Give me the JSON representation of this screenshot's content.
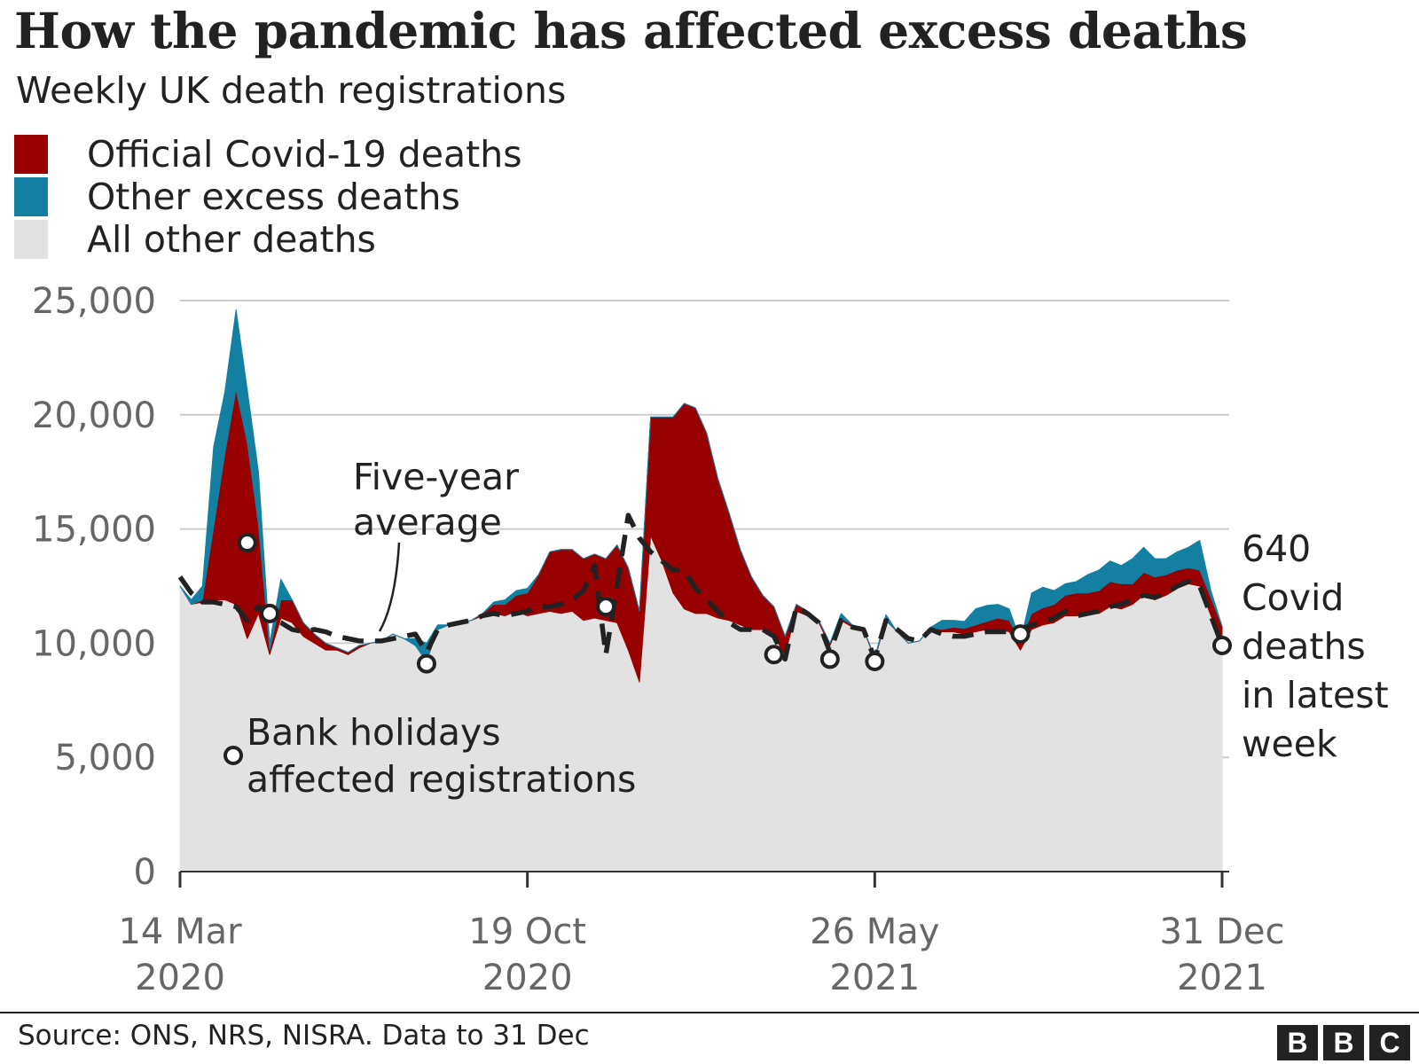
{
  "title": "How the pandemic has affected excess deaths",
  "subtitle": "Weekly UK death registrations",
  "legend": [
    {
      "label": "Official Covid-19 deaths",
      "color": "#990000"
    },
    {
      "label": "Other excess deaths",
      "color": "#1380a1"
    },
    {
      "label": "All other deaths",
      "color": "#e2e2e2"
    }
  ],
  "annotations": {
    "five_year_l1": "Five-year",
    "five_year_l2": "average",
    "bank_l1": "Bank holidays",
    "bank_l2": "affected registrations",
    "latest": [
      "640",
      "Covid",
      "deaths",
      "in latest",
      "week"
    ]
  },
  "source": "Source: ONS, NRS, NISRA. Data to 31 Dec",
  "logo": [
    "B",
    "B",
    "C"
  ],
  "chart_data": {
    "type": "area",
    "title": "How the pandemic has affected excess deaths",
    "subtitle": "Weekly UK death registrations",
    "ylim": [
      0,
      25000
    ],
    "yticks": [
      0,
      5000,
      10000,
      15000,
      20000,
      25000
    ],
    "ytick_labels": [
      "0",
      "5,000",
      "10,000",
      "15,000",
      "20,000",
      "25,000"
    ],
    "xlim": [
      0,
      93
    ],
    "xticks": [
      {
        "week": 0,
        "line1": "14 Mar",
        "line2": "2020"
      },
      {
        "week": 31,
        "line1": "19 Oct",
        "line2": "2020"
      },
      {
        "week": 62,
        "line1": "26 May",
        "line2": "2021"
      },
      {
        "week": 93,
        "line1": "31 Dec",
        "line2": "2021"
      }
    ],
    "series": [
      {
        "name": "All other deaths",
        "color": "#e2e2e2",
        "values": [
          12500,
          11700,
          11800,
          11900,
          11900,
          11700,
          10200,
          11300,
          9500,
          11100,
          10900,
          10300,
          10000,
          9700,
          9700,
          9500,
          9800,
          10000,
          10100,
          10400,
          10200,
          9900,
          9200,
          10600,
          10800,
          10900,
          11000,
          11200,
          11300,
          11200,
          11400,
          11200,
          11300,
          11400,
          11300,
          11400,
          11000,
          11100,
          11000,
          10900,
          9700,
          8300,
          14700,
          13600,
          12200,
          11500,
          11300,
          11300,
          11100,
          11000,
          10800,
          10600,
          10600,
          10300,
          9500,
          11400,
          11200,
          10900,
          9900,
          11000,
          10700,
          10600,
          9300,
          11000,
          10500,
          10000,
          10100,
          10700,
          10500,
          10500,
          10400,
          10500,
          10600,
          10600,
          10500,
          9700,
          10600,
          10800,
          10900,
          11200,
          11200,
          11300,
          11300,
          11600,
          11500,
          11700,
          12100,
          11900,
          12100,
          12400,
          12600,
          12500,
          11200,
          10100
        ]
      },
      {
        "name": "Official Covid-19 deaths",
        "color": "#990000",
        "values": [
          0,
          0,
          100,
          3200,
          6400,
          9400,
          8600,
          3900,
          200,
          800,
          1000,
          600,
          400,
          300,
          100,
          100,
          100,
          0,
          0,
          0,
          0,
          0,
          0,
          0,
          0,
          0,
          0,
          100,
          400,
          500,
          700,
          1000,
          1700,
          2600,
          2800,
          2700,
          2700,
          2800,
          2700,
          3400,
          3600,
          3100,
          5200,
          6300,
          7700,
          9000,
          9000,
          7900,
          6100,
          4700,
          3300,
          2300,
          1500,
          1300,
          800,
          300,
          200,
          100,
          100,
          100,
          100,
          50,
          50,
          50,
          0,
          0,
          0,
          0,
          100,
          200,
          250,
          300,
          350,
          500,
          500,
          400,
          700,
          750,
          800,
          900,
          1000,
          900,
          1000,
          1100,
          1100,
          900,
          1000,
          1000,
          900,
          800,
          700,
          700,
          800,
          640
        ]
      },
      {
        "name": "Other excess deaths",
        "color": "#1380a1",
        "values": [
          0,
          200,
          600,
          3500,
          2700,
          3500,
          2300,
          2300,
          300,
          900,
          0,
          0,
          0,
          0,
          0,
          0,
          0,
          0,
          0,
          0,
          0,
          300,
          800,
          200,
          0,
          0,
          0,
          0,
          100,
          200,
          200,
          200,
          0,
          0,
          0,
          0,
          0,
          0,
          0,
          0,
          0,
          0,
          0,
          0,
          0,
          0,
          0,
          0,
          0,
          0,
          0,
          0,
          0,
          0,
          0,
          0,
          0,
          0,
          0,
          200,
          0,
          0,
          0,
          200,
          0,
          0,
          0,
          0,
          400,
          300,
          300,
          700,
          700,
          600,
          500,
          0,
          900,
          900,
          600,
          500,
          500,
          800,
          900,
          900,
          800,
          1100,
          1100,
          800,
          700,
          800,
          900,
          1300,
          300,
          0
        ]
      }
    ],
    "five_year_average": [
      12900,
      12200,
      11800,
      11800,
      11700,
      11600,
      11000,
      11600,
      11100,
      10900,
      10600,
      10500,
      10600,
      10500,
      10300,
      10200,
      10100,
      10100,
      10100,
      10200,
      10300,
      10400,
      9600,
      10600,
      10800,
      10900,
      11000,
      11200,
      11300,
      11200,
      11300,
      11400,
      11600,
      11600,
      11700,
      11900,
      12300,
      13400,
      9500,
      12500,
      15600,
      14600,
      14000,
      13600,
      13200,
      13200,
      12400,
      11900,
      11400,
      10900,
      10600,
      10600,
      10600,
      10300,
      9300,
      11600,
      11300,
      10900,
      9600,
      11000,
      10700,
      10600,
      9300,
      11000,
      10600,
      10200,
      10100,
      10600,
      10400,
      10300,
      10300,
      10400,
      10500,
      10500,
      10500,
      10600,
      10800,
      10900,
      11100,
      11400,
      11200,
      11300,
      11400,
      11600,
      11700,
      11900,
      12100,
      12000,
      12200,
      12500,
      12700,
      12500,
      11200,
      9900
    ],
    "bank_holiday_markers": [
      {
        "week": 6,
        "value": 14400
      },
      {
        "week": 8,
        "value": 11300
      },
      {
        "week": 22,
        "value": 9100
      },
      {
        "week": 38,
        "value": 11600
      },
      {
        "week": 53,
        "value": 9500
      },
      {
        "week": 58,
        "value": 9300
      },
      {
        "week": 62,
        "value": 9200
      },
      {
        "week": 75,
        "value": 10400
      },
      {
        "week": 93,
        "value": 9900
      }
    ]
  }
}
